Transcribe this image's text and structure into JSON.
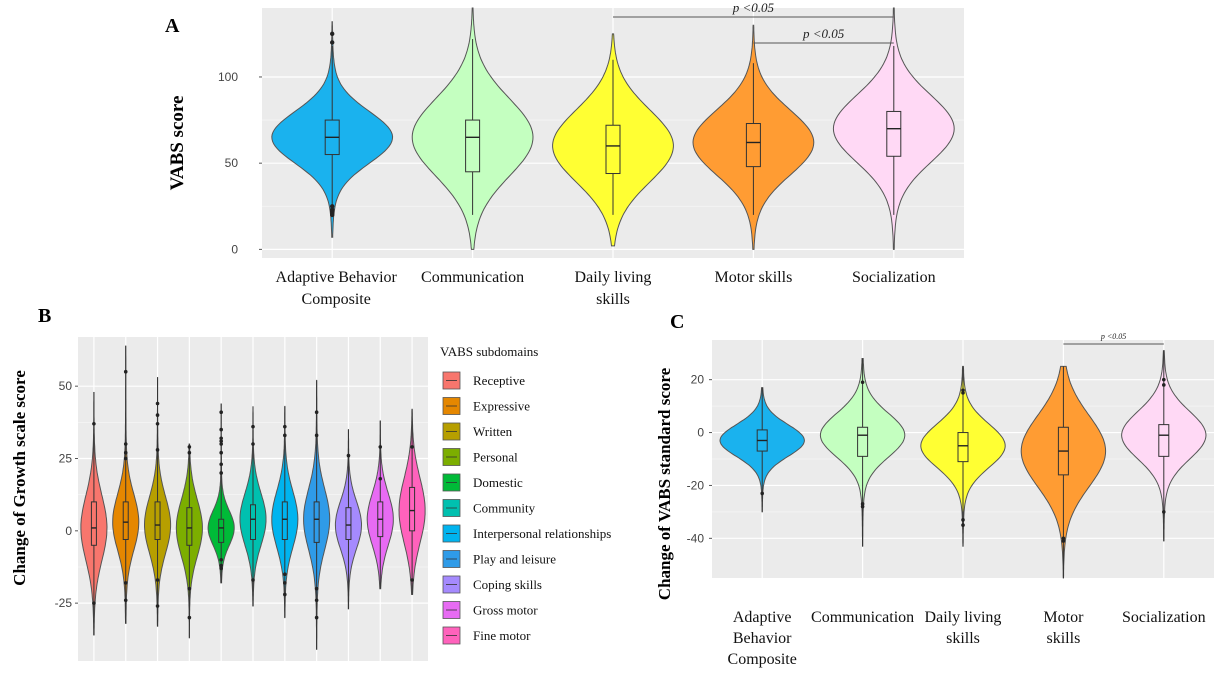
{
  "chart_data": [
    {
      "panel": "A",
      "type": "violin",
      "ylabel": "VABS score",
      "ylim": [
        -5,
        140
      ],
      "yticks": [
        0,
        50,
        100
      ],
      "categories": [
        "Adaptive Behavior Composite",
        "Communication",
        "Daily living skills",
        "Motor skills",
        "Socialization"
      ],
      "category_lines": [
        [
          "Adaptive Behavior",
          "Composite"
        ],
        [
          "Communication"
        ],
        [
          "Daily  living",
          "skills"
        ],
        [
          "Motor skills"
        ],
        [
          "Socialization"
        ]
      ],
      "colors": [
        "#1ab2ee",
        "#c4ffc0",
        "#ffff33",
        "#ff9c33",
        "#ffd9f5"
      ],
      "series": [
        {
          "name": "Adaptive Behavior Composite",
          "min": 7,
          "q1": 55,
          "median": 65,
          "q3": 75,
          "max": 132,
          "whisker_low": 20,
          "whisker_high": 118,
          "outliers": [
            25,
            23,
            22,
            21,
            20,
            120,
            125
          ]
        },
        {
          "name": "Communication",
          "min": 0,
          "q1": 45,
          "median": 65,
          "q3": 75,
          "max": 140,
          "whisker_low": 20,
          "whisker_high": 122,
          "outliers": []
        },
        {
          "name": "Daily living skills",
          "min": 2,
          "q1": 44,
          "median": 60,
          "q3": 72,
          "max": 125,
          "whisker_low": 20,
          "whisker_high": 110,
          "outliers": []
        },
        {
          "name": "Motor skills",
          "min": 0,
          "q1": 48,
          "median": 62,
          "q3": 73,
          "max": 130,
          "whisker_low": 20,
          "whisker_high": 108,
          "outliers": []
        },
        {
          "name": "Socialization",
          "min": 0,
          "q1": 54,
          "median": 70,
          "q3": 80,
          "max": 140,
          "whisker_low": 20,
          "whisker_high": 118,
          "outliers": []
        }
      ],
      "annotations": [
        {
          "text": "p <0.05",
          "from": "Daily living skills",
          "to": "Socialization"
        },
        {
          "text": "p <0.05",
          "from": "Motor skills",
          "to": "Socialization"
        }
      ]
    },
    {
      "panel": "B",
      "type": "violin",
      "ylabel": "Change of Growth scale score",
      "ylim": [
        -45,
        67
      ],
      "yticks": [
        -25,
        0,
        25,
        50
      ],
      "legend_title": "VABS subdomains",
      "legend_position": "right",
      "categories": [
        "Receptive",
        "Expressive",
        "Written",
        "Personal",
        "Domestic",
        "Community",
        "Interpersonal relationships",
        "Play and leisure",
        "Coping skills",
        "Gross motor",
        "Fine motor"
      ],
      "colors": [
        "#f8766d",
        "#e58700",
        "#b79f00",
        "#7cae00",
        "#00ba38",
        "#00c0af",
        "#00b4ef",
        "#2f9be8",
        "#a58afe",
        "#e76bf3",
        "#ff62bc"
      ],
      "series": [
        {
          "name": "Receptive",
          "min": -36,
          "q1": -5,
          "median": 1,
          "q3": 10,
          "max": 48,
          "outliers": [
            37,
            -25
          ]
        },
        {
          "name": "Expressive",
          "min": -32,
          "q1": -3,
          "median": 3,
          "q3": 10,
          "max": 64,
          "outliers": [
            55,
            30,
            27,
            25,
            -18,
            -24
          ]
        },
        {
          "name": "Written",
          "min": -33,
          "q1": -3,
          "median": 2,
          "q3": 10,
          "max": 53,
          "outliers": [
            44,
            40,
            37,
            28,
            -17,
            -26
          ]
        },
        {
          "name": "Personal",
          "min": -37,
          "q1": -5,
          "median": 1,
          "q3": 8,
          "max": 30,
          "outliers": [
            29,
            27,
            -30,
            -20
          ]
        },
        {
          "name": "Domestic",
          "min": -18,
          "q1": -4,
          "median": 1,
          "q3": 4,
          "max": 44,
          "outliers": [
            41,
            35,
            32,
            31,
            30,
            27,
            23,
            20,
            -10,
            -12,
            -13
          ]
        },
        {
          "name": "Community",
          "min": -26,
          "q1": -3,
          "median": 4,
          "q3": 9,
          "max": 43,
          "outliers": [
            36,
            30,
            -17
          ]
        },
        {
          "name": "Interpersonal relationships",
          "min": -30,
          "q1": -3,
          "median": 4,
          "q3": 10,
          "max": 43,
          "outliers": [
            36,
            33,
            -15,
            -18,
            -22
          ]
        },
        {
          "name": "Play and leisure",
          "min": -41,
          "q1": -4,
          "median": 4,
          "q3": 10,
          "max": 52,
          "outliers": [
            41,
            33,
            -20,
            -24,
            -30
          ]
        },
        {
          "name": "Coping skills",
          "min": -27,
          "q1": -3,
          "median": 2,
          "q3": 8,
          "max": 35,
          "outliers": [
            26
          ]
        },
        {
          "name": "Gross motor",
          "min": -20,
          "q1": -2,
          "median": 4,
          "q3": 10,
          "max": 38,
          "outliers": [
            29,
            18
          ]
        },
        {
          "name": "Fine motor",
          "min": -22,
          "q1": 0,
          "median": 7,
          "q3": 15,
          "max": 42,
          "outliers": [
            29,
            -17
          ]
        }
      ]
    },
    {
      "panel": "C",
      "type": "violin",
      "ylabel": "Change of  VABS standard  score",
      "ylim": [
        -55,
        35
      ],
      "yticks": [
        -40,
        -20,
        0,
        20
      ],
      "categories": [
        "Adaptive Behavior Composite",
        "Communication",
        "Daily living skills",
        "Motor skills",
        "Socialization"
      ],
      "category_lines": [
        [
          "Adaptive",
          "Behavior",
          "Composite"
        ],
        [
          "Communication"
        ],
        [
          "Daily  living",
          "skills"
        ],
        [
          "Motor",
          "skills"
        ],
        [
          "Socialization"
        ]
      ],
      "colors": [
        "#1ab2ee",
        "#c4ffc0",
        "#ffff33",
        "#ff9c33",
        "#ffd9f5"
      ],
      "series": [
        {
          "name": "Adaptive Behavior Composite",
          "min": -30,
          "q1": -7,
          "median": -3,
          "q3": 1,
          "max": 17,
          "outliers": [
            -23
          ]
        },
        {
          "name": "Communication",
          "min": -43,
          "q1": -9,
          "median": -1,
          "q3": 2,
          "max": 28,
          "outliers": [
            19,
            -27,
            -28
          ]
        },
        {
          "name": "Daily living skills",
          "min": -43,
          "q1": -11,
          "median": -5,
          "q3": 0,
          "max": 25,
          "outliers": [
            16,
            15,
            -33,
            -35
          ]
        },
        {
          "name": "Motor skills",
          "min": -55,
          "q1": -16,
          "median": -7,
          "q3": 2,
          "max": 25,
          "outliers": [
            -40,
            -41
          ]
        },
        {
          "name": "Socialization",
          "min": -41,
          "q1": -9,
          "median": -1,
          "q3": 3,
          "max": 31,
          "outliers": [
            20,
            18,
            -30
          ]
        }
      ],
      "annotations": [
        {
          "text": "p <0.05",
          "from": "Motor skills",
          "to": "Socialization"
        }
      ]
    }
  ]
}
